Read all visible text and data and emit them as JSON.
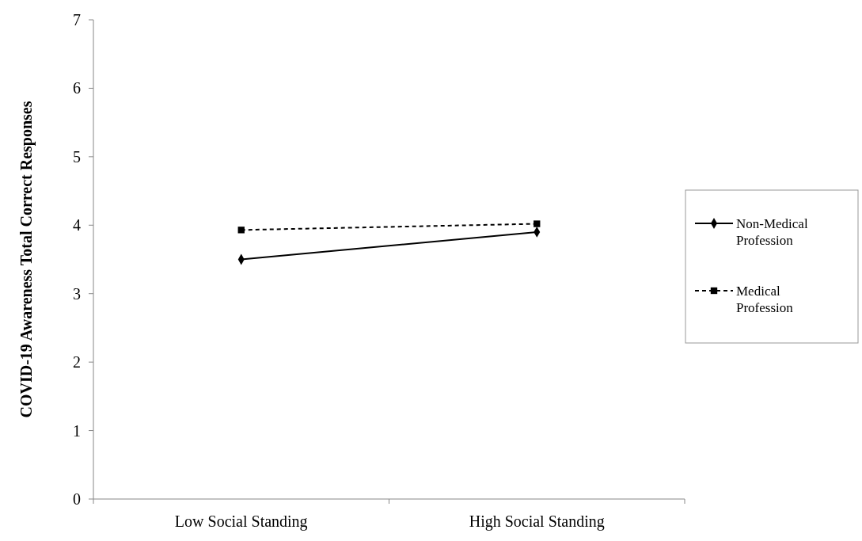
{
  "chart_data": {
    "type": "line",
    "ylabel": "COVID-19 Awareness Total Correct Responses",
    "categories": [
      "Low Social Standing",
      "High Social Standing"
    ],
    "series": [
      {
        "name": "Non-Medical Profession",
        "color": "#000000",
        "values": [
          3.5,
          3.9
        ],
        "marker": "diamond",
        "line_style": "solid"
      },
      {
        "name": "Medical Profession",
        "color": "#000000",
        "values": [
          3.93,
          4.02
        ],
        "marker": "square",
        "line_style": "dashed"
      }
    ],
    "ylim": [
      0,
      7
    ],
    "yticks": [
      0,
      1,
      2,
      3,
      4,
      5,
      6,
      7
    ],
    "grid": false,
    "legend": "right"
  }
}
